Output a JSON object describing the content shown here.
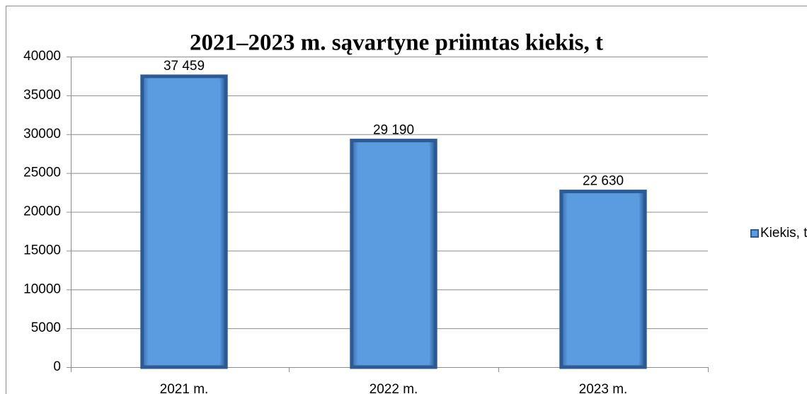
{
  "chart_data": {
    "type": "bar",
    "title": "2021‒2023 m. sąvartyne priimtas kiekis, t",
    "categories": [
      "2021 m.",
      "2022 m.",
      "2023 m."
    ],
    "series": [
      {
        "name": "Kiekis, t",
        "color": "#5b9be0",
        "values": [
          37459,
          29190,
          22630
        ],
        "value_labels": [
          "37 459",
          "29 190",
          "22 630"
        ]
      }
    ],
    "ylim": [
      0,
      40000
    ],
    "yticks": [
      0,
      5000,
      10000,
      15000,
      20000,
      25000,
      30000,
      35000,
      40000
    ],
    "grid": true,
    "legend": "right"
  }
}
